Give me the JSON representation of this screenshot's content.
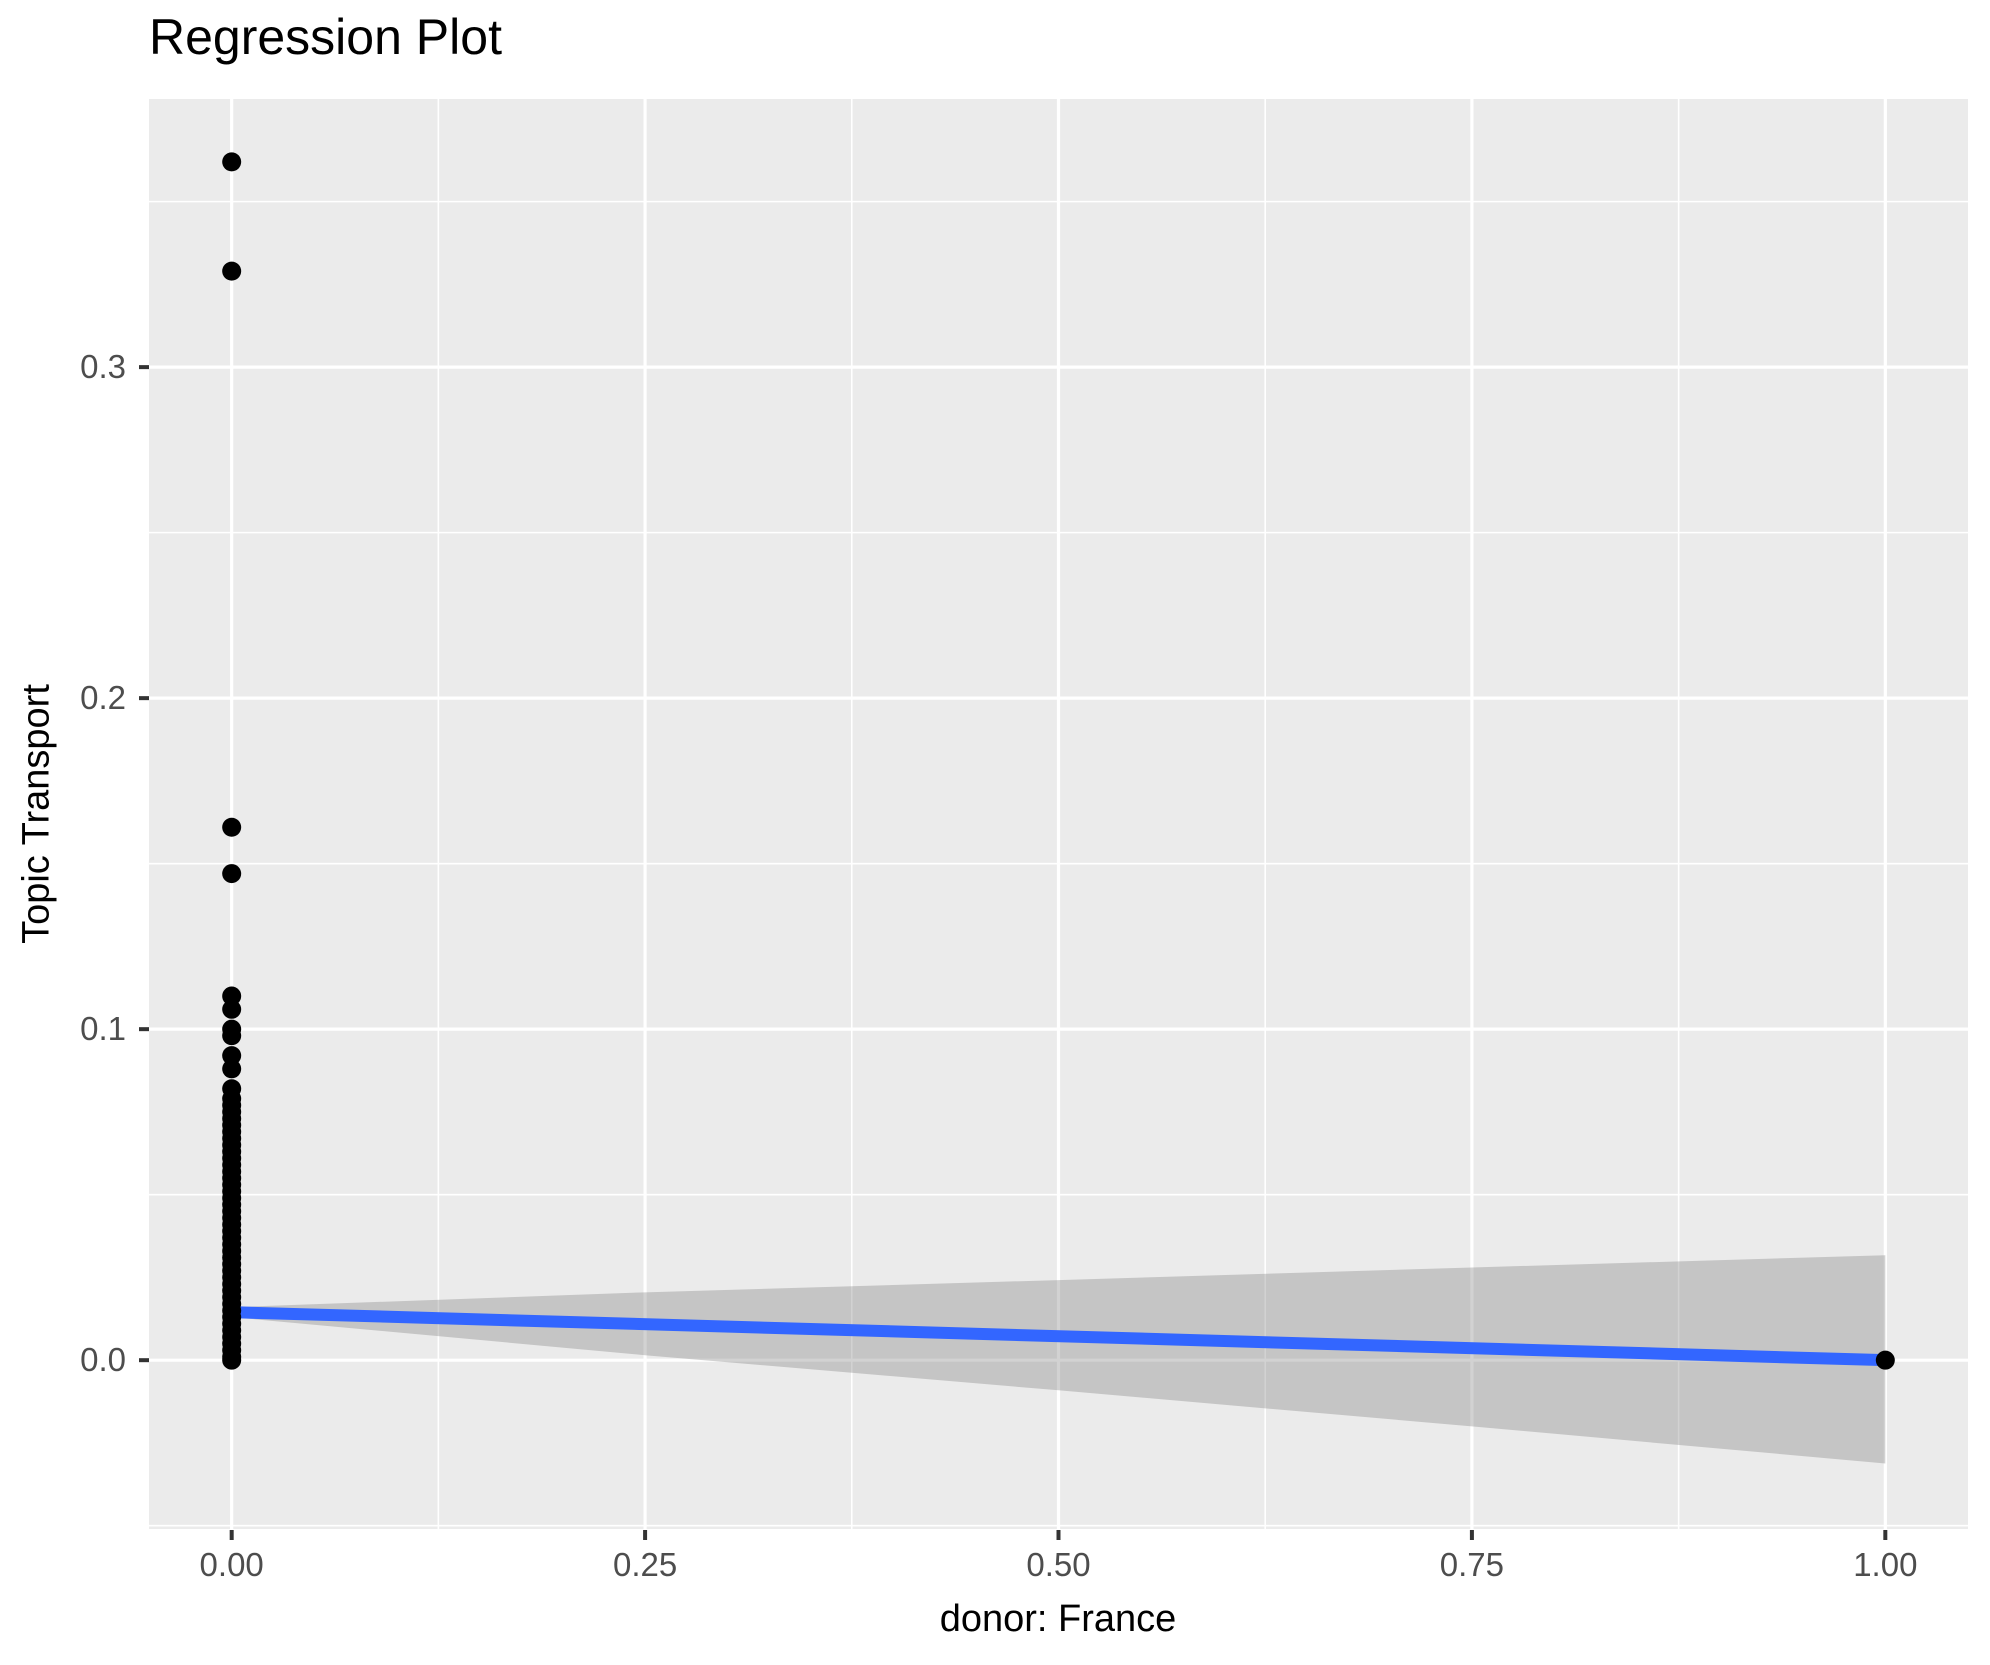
{
  "chart_data": {
    "type": "scatter",
    "title": "Regression Plot",
    "xlabel": "donor: France",
    "ylabel": "Topic Transport",
    "xlim": [
      -0.05,
      1.05
    ],
    "ylim": [
      -0.051,
      0.381
    ],
    "grid": "on",
    "legend": "none",
    "x_ticks": [
      {
        "value": 0.0,
        "label": "0.00"
      },
      {
        "value": 0.25,
        "label": "0.25"
      },
      {
        "value": 0.5,
        "label": "0.50"
      },
      {
        "value": 0.75,
        "label": "0.75"
      },
      {
        "value": 1.0,
        "label": "1.00"
      }
    ],
    "y_ticks": [
      {
        "value": 0.0,
        "label": "0.0"
      },
      {
        "value": 0.1,
        "label": "0.1"
      },
      {
        "value": 0.2,
        "label": "0.2"
      },
      {
        "value": 0.3,
        "label": "0.3"
      }
    ],
    "x_minor_gridlines": [
      0.125,
      0.375,
      0.625,
      0.875
    ],
    "y_minor_gridlines": [
      -0.05,
      0.05,
      0.15,
      0.25,
      0.35
    ],
    "points_at_x0": [
      0.362,
      0.329,
      0.161,
      0.147,
      0.11,
      0.106,
      0.1,
      0.098,
      0.092,
      0.088,
      0.082,
      0.079,
      0.077,
      0.075,
      0.073,
      0.071,
      0.069,
      0.067,
      0.065,
      0.063,
      0.061,
      0.059,
      0.057,
      0.055,
      0.053,
      0.051,
      0.049,
      0.047,
      0.045,
      0.043,
      0.041,
      0.039,
      0.037,
      0.035,
      0.033,
      0.031,
      0.029,
      0.027,
      0.025,
      0.023,
      0.021,
      0.019,
      0.017,
      0.015,
      0.013,
      0.011,
      0.009,
      0.007,
      0.005,
      0.003,
      0.001,
      0.0
    ],
    "points_at_x1": [
      0.0
    ],
    "regression_line": {
      "x": [
        0.0,
        1.0
      ],
      "y": [
        0.0145,
        0.0
      ]
    },
    "ci_ribbon": {
      "x": [
        0.0,
        0.25,
        0.5,
        0.75,
        1.0
      ],
      "upper": [
        0.016,
        0.0205,
        0.0242,
        0.028,
        0.0317
      ],
      "lower": [
        0.013,
        0.0015,
        -0.0091,
        -0.02,
        -0.0312
      ]
    },
    "colors": {
      "panel_background": "#EBEBEB",
      "gridline": "#FFFFFF",
      "point": "#000000",
      "regression_line": "#3366FF",
      "ribbon": "#7F7F7F",
      "ribbon_opacity": 0.35,
      "tick_mark": "#333333",
      "tick_label": "#4D4D4D",
      "title_text": "#000000"
    }
  }
}
